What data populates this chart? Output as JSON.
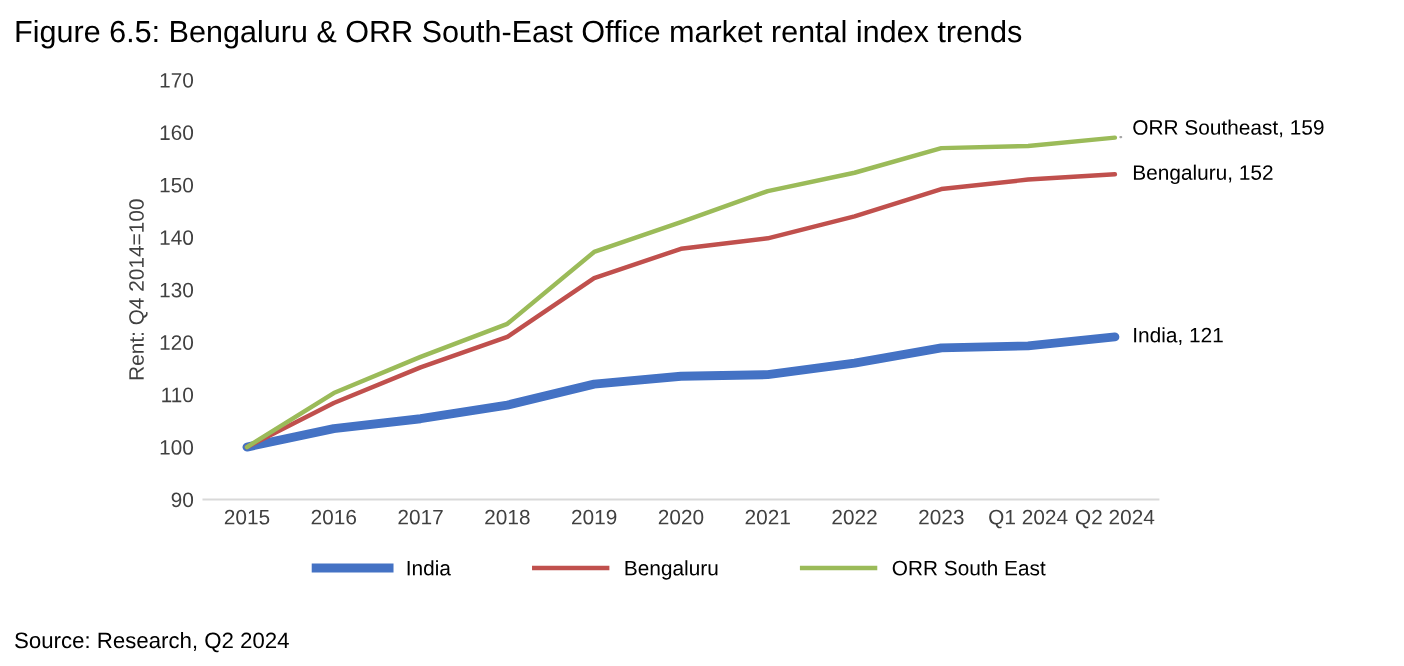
{
  "chart_data": {
    "type": "line",
    "title": "Figure 6.5: Bengaluru & ORR South-East Office market rental index trends",
    "ylabel": "Rent: Q4 2014=100",
    "categories": [
      "2015",
      "2016",
      "2017",
      "2018",
      "2019",
      "2020",
      "2021",
      "2022",
      "2023",
      "Q1 2024",
      "Q2 2024"
    ],
    "series": [
      {
        "name": "India",
        "color": "#4472c4",
        "values": [
          100,
          103.5,
          105.4,
          108,
          112,
          113.5,
          113.8,
          116,
          118.9,
          119.3,
          121
        ]
      },
      {
        "name": "Bengaluru",
        "color": "#c0504d",
        "values": [
          100,
          108.4,
          115.2,
          121,
          132.2,
          137.8,
          139.8,
          144,
          149.2,
          151,
          152
        ]
      },
      {
        "name": "ORR South East",
        "color": "#9bbb59",
        "values": [
          100,
          110.3,
          117.2,
          123.5,
          137.2,
          142.9,
          148.8,
          152.3,
          157,
          157.4,
          159
        ]
      }
    ],
    "ylim": [
      90,
      170
    ],
    "yticks": [
      90,
      100,
      110,
      120,
      130,
      140,
      150,
      160,
      170
    ],
    "grid": false,
    "legend": "bottom",
    "marker": "none",
    "line_style": "solid",
    "annotations": [
      {
        "text": "India, 121",
        "x": "Q2 2024",
        "y": 121
      },
      {
        "text": "Bengaluru, 152",
        "x": "Q2 2024",
        "y": 152
      },
      {
        "text": "ORR Southeast, 159",
        "x": "Q2 2024",
        "y": 159
      },
      "Source: Research, Q2 2024"
    ]
  }
}
